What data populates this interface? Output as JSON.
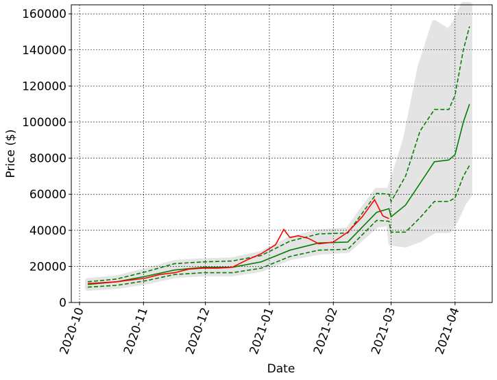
{
  "chart_data": {
    "type": "line",
    "x_label": "Date",
    "y_label": "Price ($)",
    "xlim": [
      "2020-09-27",
      "2021-04-19"
    ],
    "xticks": [
      {
        "value": "2020-10-01",
        "label": "2020-10"
      },
      {
        "value": "2020-11-01",
        "label": "2020-11"
      },
      {
        "value": "2020-12-01",
        "label": "2020-12"
      },
      {
        "value": "2021-01-01",
        "label": "2021-01"
      },
      {
        "value": "2021-02-01",
        "label": "2021-02"
      },
      {
        "value": "2021-03-01",
        "label": "2021-03"
      },
      {
        "value": "2021-04-01",
        "label": "2021-04"
      }
    ],
    "ylim": [
      0,
      165000
    ],
    "yticks": [
      0,
      20000,
      40000,
      60000,
      80000,
      100000,
      120000,
      140000,
      160000
    ],
    "grid": true,
    "band": {
      "color": "#e4e4e4",
      "x": [
        "2020-10-05",
        "2020-10-19",
        "2020-11-02",
        "2020-11-16",
        "2020-11-30",
        "2020-12-14",
        "2020-12-28",
        "2021-01-11",
        "2021-01-25",
        "2021-02-08",
        "2021-02-22",
        "2021-02-28",
        "2021-03-01",
        "2021-03-08",
        "2021-03-15",
        "2021-03-22",
        "2021-03-29",
        "2021-04-01",
        "2021-04-05",
        "2021-04-08"
      ],
      "lower": [
        8000,
        9000,
        11500,
        15000,
        16000,
        16000,
        18500,
        25000,
        28000,
        29000,
        43000,
        44000,
        33000,
        32000,
        35000,
        40000,
        40000,
        45000,
        55000,
        60000
      ],
      "upper": [
        12000,
        13500,
        17500,
        22000,
        23000,
        23500,
        27000,
        35000,
        39000,
        40000,
        62000,
        62000,
        65000,
        90000,
        130000,
        155000,
        150000,
        155000,
        165000,
        165000
      ]
    },
    "series": [
      {
        "color": "#008000",
        "style": "dashed",
        "x": [
          "2020-10-05",
          "2020-10-19",
          "2020-11-02",
          "2020-11-16",
          "2020-11-30",
          "2020-12-14",
          "2020-12-28",
          "2021-01-11",
          "2021-01-25",
          "2021-02-08",
          "2021-02-22",
          "2021-02-28",
          "2021-03-01",
          "2021-03-08",
          "2021-03-15",
          "2021-03-22",
          "2021-03-29",
          "2021-04-01",
          "2021-04-05",
          "2021-04-08"
        ],
        "values": [
          11500,
          13000,
          17000,
          21500,
          22500,
          23000,
          26000,
          34000,
          38000,
          38500,
          60500,
          60000,
          56000,
          70000,
          95000,
          107000,
          107000,
          115000,
          140000,
          153000
        ]
      },
      {
        "color": "#008000",
        "style": "dashed",
        "x": [
          "2020-10-05",
          "2020-10-19",
          "2020-11-02",
          "2020-11-16",
          "2020-11-30",
          "2020-12-14",
          "2020-12-28",
          "2021-01-11",
          "2021-01-25",
          "2021-02-08",
          "2021-02-22",
          "2021-02-28",
          "2021-03-01",
          "2021-03-08",
          "2021-03-15",
          "2021-03-22",
          "2021-03-29",
          "2021-04-01",
          "2021-04-05",
          "2021-04-08"
        ],
        "values": [
          8500,
          9500,
          12000,
          15500,
          16500,
          16500,
          19000,
          25500,
          29000,
          29500,
          45500,
          45000,
          39000,
          39000,
          47000,
          56000,
          56000,
          58000,
          70000,
          76000
        ]
      },
      {
        "color": "#008000",
        "style": "solid",
        "x": [
          "2020-10-05",
          "2020-10-19",
          "2020-11-02",
          "2020-11-16",
          "2020-11-30",
          "2020-12-14",
          "2020-12-28",
          "2021-01-11",
          "2021-01-25",
          "2021-02-08",
          "2021-02-22",
          "2021-02-28",
          "2021-03-01",
          "2021-03-08",
          "2021-03-15",
          "2021-03-22",
          "2021-03-29",
          "2021-04-01",
          "2021-04-05",
          "2021-04-08"
        ],
        "values": [
          10000,
          11500,
          14500,
          18000,
          19500,
          19500,
          22500,
          29000,
          33000,
          33500,
          50000,
          52000,
          47500,
          54000,
          66000,
          78000,
          79000,
          82000,
          100000,
          110000
        ]
      },
      {
        "color": "#ff0000",
        "style": "solid",
        "x": [
          "2020-10-05",
          "2020-10-19",
          "2020-11-02",
          "2020-11-09",
          "2020-11-16",
          "2020-11-23",
          "2020-11-30",
          "2020-12-07",
          "2020-12-14",
          "2020-12-21",
          "2020-12-28",
          "2021-01-04",
          "2021-01-08",
          "2021-01-11",
          "2021-01-15",
          "2021-01-20",
          "2021-01-25",
          "2021-02-01",
          "2021-02-08",
          "2021-02-15",
          "2021-02-21",
          "2021-02-25",
          "2021-02-28"
        ],
        "values": [
          10500,
          11500,
          13500,
          15500,
          16500,
          18500,
          19000,
          19000,
          19500,
          23500,
          27000,
          32000,
          40500,
          36000,
          37000,
          35500,
          32500,
          33500,
          39000,
          47500,
          57000,
          48000,
          46500
        ]
      }
    ]
  }
}
